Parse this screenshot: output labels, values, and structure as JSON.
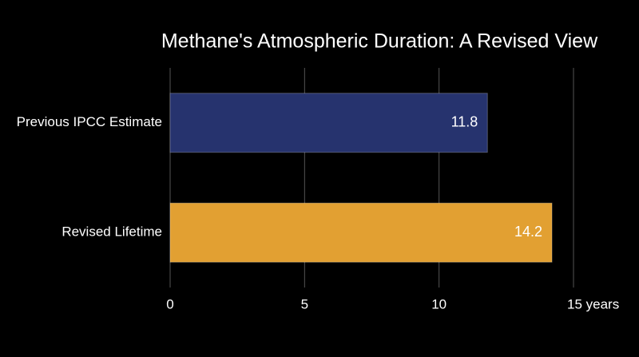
{
  "chart_data": {
    "type": "bar",
    "orientation": "horizontal",
    "title": "Methane's Atmospheric Duration: A Revised View",
    "categories": [
      "Previous IPCC Estimate",
      "Revised Lifetime"
    ],
    "values": [
      11.8,
      14.2
    ],
    "colors": [
      "#26336e",
      "#e2a032"
    ],
    "xlim": [
      0,
      15
    ],
    "xticks": [
      0,
      5,
      10,
      {
        "value": 15,
        "label": "15 years"
      }
    ],
    "grid": true
  }
}
